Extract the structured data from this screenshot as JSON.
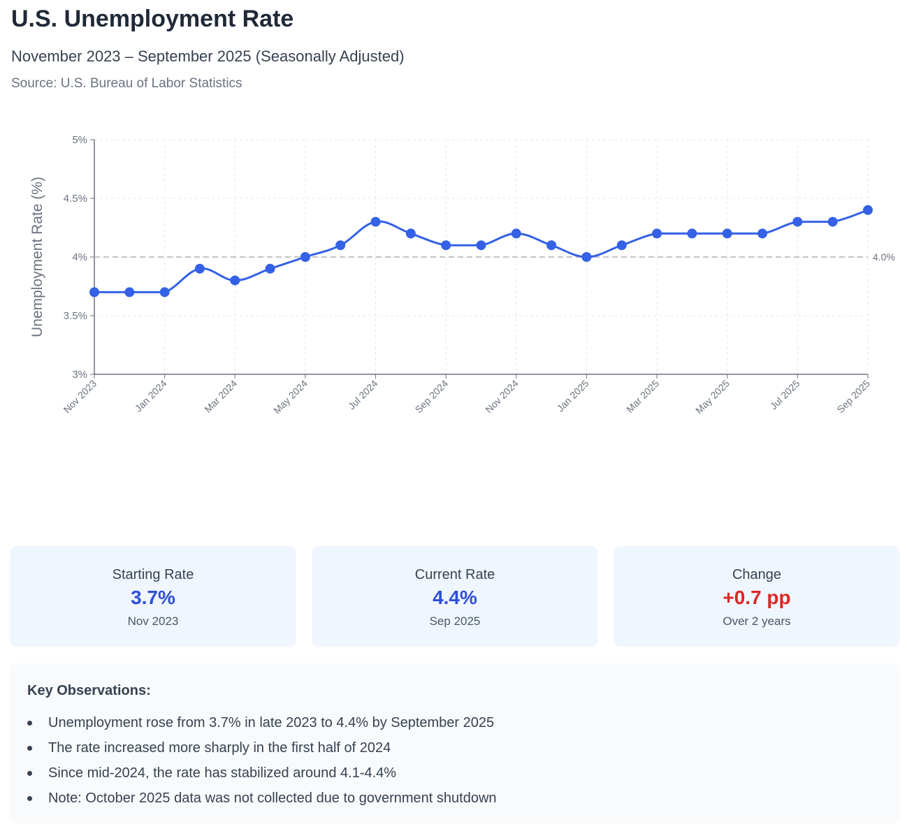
{
  "header": {
    "title": "U.S. Unemployment Rate",
    "subtitle": "November 2023 – September 2025 (Seasonally Adjusted)",
    "source": "Source: U.S. Bureau of Labor Statistics"
  },
  "chart_data": {
    "type": "line",
    "ylabel": "Unemployment Rate (%)",
    "ylim": [
      3,
      5
    ],
    "y_ticks": [
      {
        "value": 3,
        "label": "3%"
      },
      {
        "value": 3.5,
        "label": "3.5%"
      },
      {
        "value": 4,
        "label": "4%"
      },
      {
        "value": 4.5,
        "label": "4.5%"
      },
      {
        "value": 5,
        "label": "5%"
      }
    ],
    "x": [
      "Nov 2023",
      "Dec 2023",
      "Jan 2024",
      "Feb 2024",
      "Mar 2024",
      "Apr 2024",
      "May 2024",
      "Jun 2024",
      "Jul 2024",
      "Aug 2024",
      "Sep 2024",
      "Oct 2024",
      "Nov 2024",
      "Dec 2024",
      "Jan 2025",
      "Feb 2025",
      "Mar 2025",
      "Apr 2025",
      "May 2025",
      "Jun 2025",
      "Jul 2025",
      "Aug 2025",
      "Sep 2025"
    ],
    "x_tick_labels": [
      "Nov 2023",
      "Jan 2024",
      "Mar 2024",
      "May 2024",
      "Jul 2024",
      "Sep 2024",
      "Nov 2024",
      "Jan 2025",
      "Mar 2025",
      "May 2025",
      "Jul 2025",
      "Sep 2025"
    ],
    "series": [
      {
        "values": [
          3.7,
          3.7,
          3.7,
          3.9,
          3.8,
          3.9,
          4.0,
          4.1,
          4.3,
          4.2,
          4.1,
          4.1,
          4.2,
          4.1,
          4.0,
          4.1,
          4.2,
          4.2,
          4.2,
          4.2,
          4.3,
          4.3,
          4.4
        ],
        "color": "#3461e6"
      }
    ],
    "reference_line": {
      "value": 4.0,
      "label": "4.0%",
      "style": "dashed",
      "color": "#b0b0b0"
    },
    "grid": true,
    "legend": "none"
  },
  "cards": [
    {
      "label": "Starting Rate",
      "value": "3.7%",
      "sub": "Nov 2023",
      "tone": "blue"
    },
    {
      "label": "Current Rate",
      "value": "4.4%",
      "sub": "Sep 2025",
      "tone": "blue"
    },
    {
      "label": "Change",
      "value": "+0.7 pp",
      "sub": "Over 2 years",
      "tone": "red"
    }
  ],
  "observations": {
    "title": "Key Observations:",
    "items": [
      "Unemployment rose from 3.7% in late 2023 to 4.4% by September 2025",
      "The rate increased more sharply in the first half of 2024",
      "Since mid-2024, the rate has stabilized around 4.1-4.4%",
      "Note: October 2025 data was not collected due to government shutdown"
    ]
  }
}
